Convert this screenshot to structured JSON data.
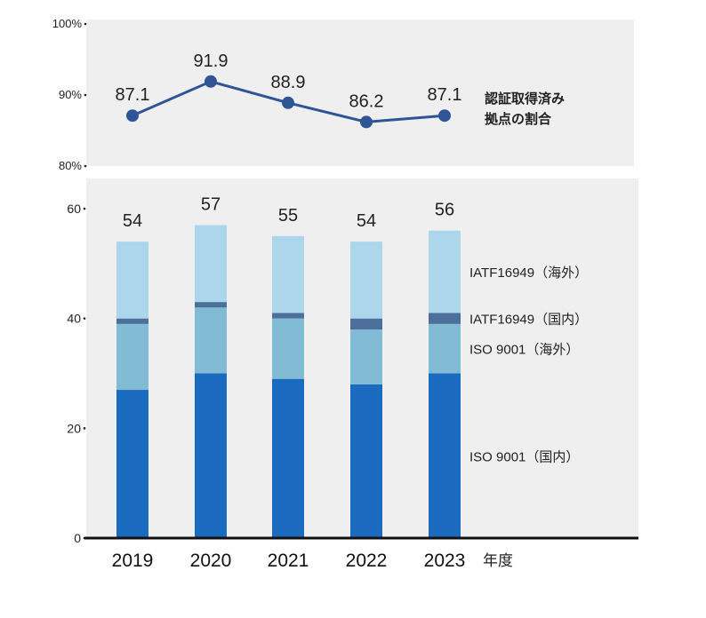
{
  "chart_data": [
    {
      "type": "line",
      "title": "",
      "series_label_lines": [
        "認証取得済み",
        "拠点の割合"
      ],
      "x": [
        "2019",
        "2020",
        "2021",
        "2022",
        "2023"
      ],
      "values": [
        87.1,
        91.9,
        88.9,
        86.2,
        87.1
      ],
      "value_labels": [
        "87.1",
        "91.9",
        "88.9",
        "86.2",
        "87.1"
      ],
      "ylim": [
        80,
        100
      ],
      "yticks": [
        "80%",
        "90%",
        "100%"
      ],
      "color": "#2f5597",
      "grid": false
    },
    {
      "type": "bar",
      "stacked": true,
      "categories": [
        "2019",
        "2020",
        "2021",
        "2022",
        "2023"
      ],
      "xlabel": "年度",
      "ylim": [
        0,
        60
      ],
      "yticks": [
        "0",
        "20",
        "40",
        "60"
      ],
      "totals": [
        "54",
        "57",
        "55",
        "54",
        "56"
      ],
      "grid": false,
      "legend": "right",
      "series": [
        {
          "name": "ISO 9001（国内）",
          "values": [
            27,
            30,
            29,
            28,
            30
          ],
          "color": "#1a6bbf"
        },
        {
          "name": "ISO 9001（海外）",
          "values": [
            12,
            12,
            11,
            10,
            9
          ],
          "color": "#82bbd4"
        },
        {
          "name": "IATF16949（国内）",
          "values": [
            1,
            1,
            1,
            2,
            2
          ],
          "color": "#4d6f9b"
        },
        {
          "name": "IATF16949（海外）",
          "values": [
            14,
            14,
            14,
            14,
            15
          ],
          "color": "#acd6ec"
        }
      ]
    }
  ]
}
